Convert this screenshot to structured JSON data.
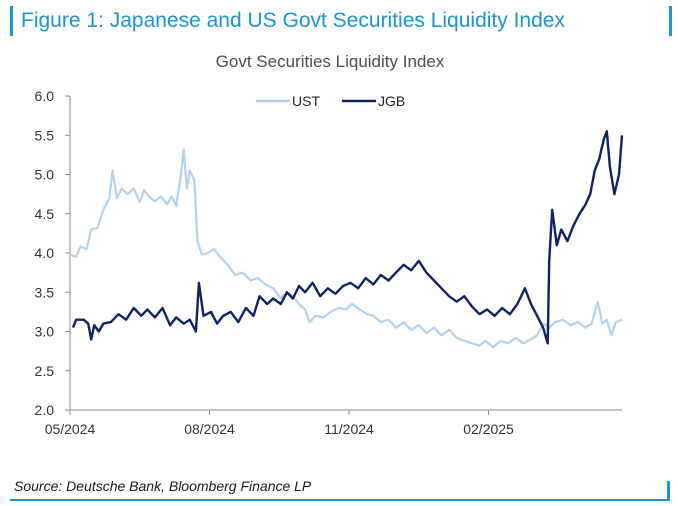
{
  "figure": {
    "title": "Figure 1: Japanese and US Govt Securities Liquidity Index",
    "source": "Source: Deutsche Bank, Bloomberg Finance LP"
  },
  "colors": {
    "accent": "#1b94d2",
    "ust": "#b4d2ea",
    "jgb": "#0e2463",
    "axis": "#8a8a8a"
  },
  "chart_data": {
    "type": "line",
    "title": "Govt Securities Liquidity Index",
    "xlabel": "",
    "ylabel": "",
    "ylim": [
      2.0,
      6.0
    ],
    "y_ticks": [
      "2.0",
      "2.5",
      "3.0",
      "3.5",
      "4.0",
      "4.5",
      "5.0",
      "5.5",
      "6.0"
    ],
    "y_tick_values": [
      2.0,
      2.5,
      3.0,
      3.5,
      4.0,
      4.5,
      5.0,
      5.5,
      6.0
    ],
    "x_ticks": [
      "05/2024",
      "08/2024",
      "11/2024",
      "02/2025"
    ],
    "x_tick_dates": [
      "2024-05-01",
      "2024-08-01",
      "2024-11-01",
      "2025-02-01"
    ],
    "xlim": [
      "2024-05-01",
      "2025-04-30"
    ],
    "grid": false,
    "legend": "top-center",
    "series": [
      {
        "name": "UST",
        "color": "#b4d2ea",
        "points": [
          [
            "2024-05-01",
            3.98
          ],
          [
            "2024-05-05",
            3.95
          ],
          [
            "2024-05-08",
            4.08
          ],
          [
            "2024-05-12",
            4.05
          ],
          [
            "2024-05-15",
            4.3
          ],
          [
            "2024-05-19",
            4.32
          ],
          [
            "2024-05-23",
            4.55
          ],
          [
            "2024-05-27",
            4.7
          ],
          [
            "2024-05-29",
            5.05
          ],
          [
            "2024-06-01",
            4.7
          ],
          [
            "2024-06-04",
            4.82
          ],
          [
            "2024-06-08",
            4.75
          ],
          [
            "2024-06-12",
            4.82
          ],
          [
            "2024-06-16",
            4.65
          ],
          [
            "2024-06-19",
            4.8
          ],
          [
            "2024-06-22",
            4.72
          ],
          [
            "2024-06-26",
            4.66
          ],
          [
            "2024-06-30",
            4.72
          ],
          [
            "2024-07-04",
            4.62
          ],
          [
            "2024-07-07",
            4.72
          ],
          [
            "2024-07-10",
            4.6
          ],
          [
            "2024-07-13",
            4.98
          ],
          [
            "2024-07-15",
            5.32
          ],
          [
            "2024-07-17",
            4.82
          ],
          [
            "2024-07-19",
            5.05
          ],
          [
            "2024-07-22",
            4.92
          ],
          [
            "2024-07-24",
            4.15
          ],
          [
            "2024-07-27",
            3.98
          ],
          [
            "2024-07-31",
            4.0
          ],
          [
            "2024-08-04",
            4.05
          ],
          [
            "2024-08-08",
            3.95
          ],
          [
            "2024-08-13",
            3.85
          ],
          [
            "2024-08-18",
            3.72
          ],
          [
            "2024-08-23",
            3.75
          ],
          [
            "2024-08-28",
            3.65
          ],
          [
            "2024-09-02",
            3.68
          ],
          [
            "2024-09-07",
            3.6
          ],
          [
            "2024-09-12",
            3.55
          ],
          [
            "2024-09-17",
            3.42
          ],
          [
            "2024-09-21",
            3.5
          ],
          [
            "2024-09-25",
            3.45
          ],
          [
            "2024-09-29",
            3.35
          ],
          [
            "2024-10-03",
            3.28
          ],
          [
            "2024-10-06",
            3.12
          ],
          [
            "2024-10-10",
            3.2
          ],
          [
            "2024-10-15",
            3.18
          ],
          [
            "2024-10-20",
            3.25
          ],
          [
            "2024-10-25",
            3.3
          ],
          [
            "2024-10-30",
            3.28
          ],
          [
            "2024-11-03",
            3.35
          ],
          [
            "2024-11-08",
            3.28
          ],
          [
            "2024-11-13",
            3.22
          ],
          [
            "2024-11-17",
            3.2
          ],
          [
            "2024-11-22",
            3.12
          ],
          [
            "2024-11-27",
            3.15
          ],
          [
            "2024-12-02",
            3.05
          ],
          [
            "2024-12-07",
            3.12
          ],
          [
            "2024-12-12",
            3.02
          ],
          [
            "2024-12-17",
            3.08
          ],
          [
            "2024-12-22",
            2.98
          ],
          [
            "2024-12-27",
            3.05
          ],
          [
            "2025-01-01",
            2.95
          ],
          [
            "2025-01-06",
            3.02
          ],
          [
            "2025-01-11",
            2.92
          ],
          [
            "2025-01-16",
            2.88
          ],
          [
            "2025-01-21",
            2.85
          ],
          [
            "2025-01-26",
            2.82
          ],
          [
            "2025-01-30",
            2.88
          ],
          [
            "2025-02-04",
            2.8
          ],
          [
            "2025-02-09",
            2.88
          ],
          [
            "2025-02-14",
            2.85
          ],
          [
            "2025-02-19",
            2.92
          ],
          [
            "2025-02-24",
            2.85
          ],
          [
            "2025-03-01",
            2.9
          ],
          [
            "2025-03-05",
            2.95
          ],
          [
            "2025-03-09",
            3.1
          ],
          [
            "2025-03-13",
            3.05
          ],
          [
            "2025-03-17",
            3.12
          ],
          [
            "2025-03-22",
            3.15
          ],
          [
            "2025-03-27",
            3.08
          ],
          [
            "2025-04-01",
            3.12
          ],
          [
            "2025-04-06",
            3.05
          ],
          [
            "2025-04-10",
            3.1
          ],
          [
            "2025-04-14",
            3.38
          ],
          [
            "2025-04-17",
            3.1
          ],
          [
            "2025-04-20",
            3.15
          ],
          [
            "2025-04-23",
            2.95
          ],
          [
            "2025-04-26",
            3.12
          ],
          [
            "2025-04-30",
            3.15
          ]
        ]
      },
      {
        "name": "JGB",
        "color": "#0e2463",
        "points": [
          [
            "2024-05-03",
            3.05
          ],
          [
            "2024-05-05",
            3.15
          ],
          [
            "2024-05-10",
            3.15
          ],
          [
            "2024-05-13",
            3.1
          ],
          [
            "2024-05-15",
            2.9
          ],
          [
            "2024-05-17",
            3.08
          ],
          [
            "2024-05-20",
            3.0
          ],
          [
            "2024-05-23",
            3.1
          ],
          [
            "2024-05-28",
            3.12
          ],
          [
            "2024-06-02",
            3.22
          ],
          [
            "2024-06-07",
            3.15
          ],
          [
            "2024-06-12",
            3.3
          ],
          [
            "2024-06-17",
            3.2
          ],
          [
            "2024-06-21",
            3.28
          ],
          [
            "2024-06-26",
            3.18
          ],
          [
            "2024-07-01",
            3.3
          ],
          [
            "2024-07-06",
            3.08
          ],
          [
            "2024-07-10",
            3.18
          ],
          [
            "2024-07-15",
            3.1
          ],
          [
            "2024-07-19",
            3.15
          ],
          [
            "2024-07-23",
            3.0
          ],
          [
            "2024-07-25",
            3.62
          ],
          [
            "2024-07-28",
            3.2
          ],
          [
            "2024-08-02",
            3.25
          ],
          [
            "2024-08-06",
            3.1
          ],
          [
            "2024-08-10",
            3.2
          ],
          [
            "2024-08-15",
            3.25
          ],
          [
            "2024-08-20",
            3.12
          ],
          [
            "2024-08-25",
            3.3
          ],
          [
            "2024-08-30",
            3.2
          ],
          [
            "2024-09-03",
            3.45
          ],
          [
            "2024-09-08",
            3.35
          ],
          [
            "2024-09-12",
            3.42
          ],
          [
            "2024-09-17",
            3.35
          ],
          [
            "2024-09-21",
            3.5
          ],
          [
            "2024-09-25",
            3.42
          ],
          [
            "2024-09-29",
            3.58
          ],
          [
            "2024-10-03",
            3.5
          ],
          [
            "2024-10-08",
            3.62
          ],
          [
            "2024-10-13",
            3.45
          ],
          [
            "2024-10-18",
            3.55
          ],
          [
            "2024-10-23",
            3.48
          ],
          [
            "2024-10-28",
            3.58
          ],
          [
            "2024-11-02",
            3.62
          ],
          [
            "2024-11-07",
            3.55
          ],
          [
            "2024-11-12",
            3.68
          ],
          [
            "2024-11-17",
            3.6
          ],
          [
            "2024-11-22",
            3.72
          ],
          [
            "2024-11-27",
            3.65
          ],
          [
            "2024-12-02",
            3.75
          ],
          [
            "2024-12-07",
            3.85
          ],
          [
            "2024-12-12",
            3.78
          ],
          [
            "2024-12-17",
            3.9
          ],
          [
            "2024-12-22",
            3.75
          ],
          [
            "2024-12-27",
            3.65
          ],
          [
            "2025-01-01",
            3.55
          ],
          [
            "2025-01-06",
            3.45
          ],
          [
            "2025-01-11",
            3.38
          ],
          [
            "2025-01-16",
            3.45
          ],
          [
            "2025-01-21",
            3.32
          ],
          [
            "2025-01-26",
            3.22
          ],
          [
            "2025-01-31",
            3.28
          ],
          [
            "2025-02-05",
            3.2
          ],
          [
            "2025-02-10",
            3.3
          ],
          [
            "2025-02-15",
            3.22
          ],
          [
            "2025-02-20",
            3.35
          ],
          [
            "2025-02-25",
            3.55
          ],
          [
            "2025-03-01",
            3.35
          ],
          [
            "2025-03-05",
            3.2
          ],
          [
            "2025-03-09",
            3.05
          ],
          [
            "2025-03-12",
            2.85
          ],
          [
            "2025-03-13",
            3.9
          ],
          [
            "2025-03-15",
            4.55
          ],
          [
            "2025-03-18",
            4.1
          ],
          [
            "2025-03-21",
            4.3
          ],
          [
            "2025-03-25",
            4.15
          ],
          [
            "2025-03-29",
            4.35
          ],
          [
            "2025-04-02",
            4.5
          ],
          [
            "2025-04-06",
            4.62
          ],
          [
            "2025-04-09",
            4.75
          ],
          [
            "2025-04-12",
            5.05
          ],
          [
            "2025-04-15",
            5.2
          ],
          [
            "2025-04-18",
            5.45
          ],
          [
            "2025-04-20",
            5.55
          ],
          [
            "2025-04-22",
            5.1
          ],
          [
            "2025-04-25",
            4.75
          ],
          [
            "2025-04-28",
            5.0
          ],
          [
            "2025-04-30",
            5.5
          ]
        ]
      }
    ]
  }
}
